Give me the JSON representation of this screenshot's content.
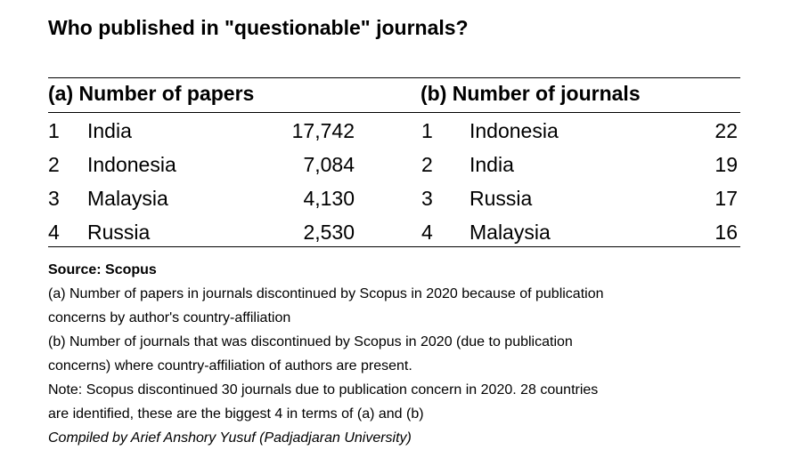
{
  "title": "Who published in \"questionable\" journals?",
  "panel_a": {
    "heading": "(a) Number of papers",
    "rows": [
      {
        "rank": "1",
        "country": "India",
        "value": "17,742"
      },
      {
        "rank": "2",
        "country": "Indonesia",
        "value": "7,084"
      },
      {
        "rank": "3",
        "country": "Malaysia",
        "value": "4,130"
      },
      {
        "rank": "4",
        "country": "Russia",
        "value": "2,530"
      }
    ]
  },
  "panel_b": {
    "heading": "(b) Number of journals",
    "rows": [
      {
        "rank": "1",
        "country": "Indonesia",
        "value": "22"
      },
      {
        "rank": "2",
        "country": "India",
        "value": "19"
      },
      {
        "rank": "3",
        "country": "Russia",
        "value": "17"
      },
      {
        "rank": "4",
        "country": "Malaysia",
        "value": "16"
      }
    ]
  },
  "notes": {
    "source": "Source: Scopus",
    "line_a1": "(a) Number of papers in journals discontinued by Scopus in 2020 because of publication",
    "line_a2": "concerns by author's country-affiliation",
    "line_b1": "(b) Number of journals that was discontinued by Scopus in 2020 (due to publication",
    "line_b2": "concerns) where country-affiliation of authors are present.",
    "note1": "Note: Scopus discontinued 30 journals due to publication concern in 2020. 28 countries",
    "note2": "are identified, these are the biggest 4 in terms of (a) and (b)",
    "credit": "Compiled by Arief Anshory Yusuf (Padjadjaran University)"
  }
}
